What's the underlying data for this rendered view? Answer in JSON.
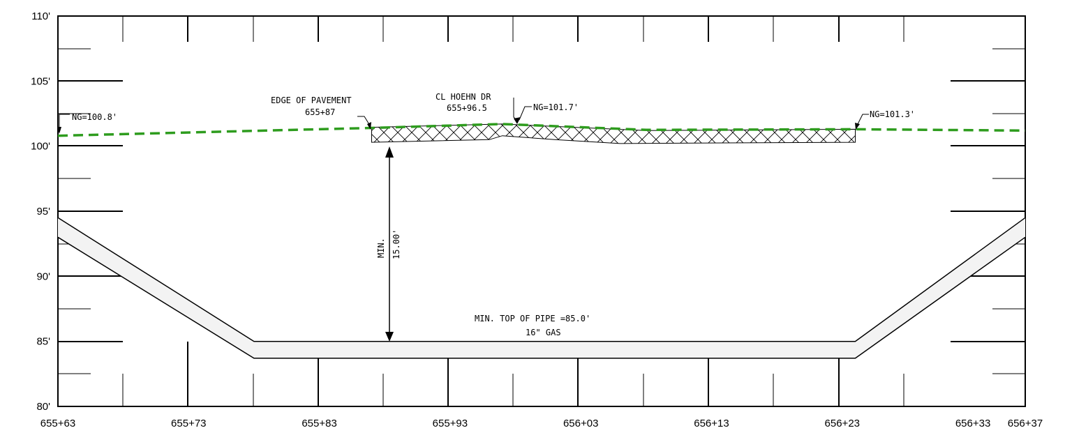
{
  "chart_data": {
    "type": "profile",
    "title": "",
    "xlabel": "",
    "ylabel": "",
    "x_unit": "ft (station)",
    "xlim": [
      65563,
      65637
    ],
    "ylim": [
      80,
      110
    ],
    "x_ticks": [
      {
        "value": 65563,
        "label": "655+63"
      },
      {
        "value": 65573,
        "label": "655+73"
      },
      {
        "value": 65583,
        "label": "655+83"
      },
      {
        "value": 65593,
        "label": "655+93"
      },
      {
        "value": 65603,
        "label": "656+03"
      },
      {
        "value": 65613,
        "label": "656+13"
      },
      {
        "value": 65623,
        "label": "656+23"
      },
      {
        "value": 65633,
        "label": "656+33"
      },
      {
        "value": 65637,
        "label": "656+37"
      }
    ],
    "y_ticks": [
      {
        "value": 80,
        "label": "80'"
      },
      {
        "value": 85,
        "label": "85'"
      },
      {
        "value": 90,
        "label": "90'"
      },
      {
        "value": 95,
        "label": "95'"
      },
      {
        "value": 100,
        "label": "100'"
      },
      {
        "value": 105,
        "label": "105'"
      },
      {
        "value": 110,
        "label": "110'"
      }
    ],
    "series": [
      {
        "key": "ground",
        "color": "#2e9c1e",
        "style": "dashed",
        "points": [
          [
            65563,
            100.8
          ],
          [
            65587,
            101.4
          ],
          [
            65597,
            101.7
          ],
          [
            65608,
            101.25
          ],
          [
            65624,
            101.3
          ],
          [
            65637,
            101.2
          ]
        ]
      },
      {
        "key": "pavement",
        "style": "crosshatch",
        "top": [
          [
            65587,
            101.45
          ],
          [
            65597,
            101.7
          ],
          [
            65608,
            101.2
          ],
          [
            65624,
            101.3
          ]
        ],
        "bottom": [
          [
            65587,
            100.3
          ],
          [
            65596,
            100.5
          ],
          [
            65597,
            100.8
          ],
          [
            65601,
            100.5
          ],
          [
            65606,
            100.2
          ],
          [
            65614,
            100.25
          ],
          [
            65624,
            100.3
          ]
        ]
      },
      {
        "key": "pipe_top",
        "style": "solid",
        "points": [
          [
            65563,
            94.5
          ],
          [
            65578,
            85.0
          ],
          [
            65624,
            85.0
          ],
          [
            65637,
            94.5
          ]
        ]
      },
      {
        "key": "pipe_bottom",
        "style": "solid",
        "points": [
          [
            65563,
            93.0
          ],
          [
            65578,
            83.7
          ],
          [
            65624,
            83.7
          ],
          [
            65637,
            93.0
          ]
        ]
      }
    ],
    "annotations": {
      "ng_left": "NG=100.8'",
      "ng_center": "NG=101.7'",
      "ng_right": "NG=101.3'",
      "edge_label": "EDGE OF PAVEMENT",
      "edge_station": "655+87",
      "cl_label": "CL HOEHN DR",
      "cl_station": "655+96.5",
      "cover_min": "MIN.",
      "cover_value": "15.00'",
      "pipe_label": "MIN. TOP OF PIPE =85.0'",
      "pipe_size": "16\" GAS"
    },
    "grid": true,
    "legend": "none"
  }
}
